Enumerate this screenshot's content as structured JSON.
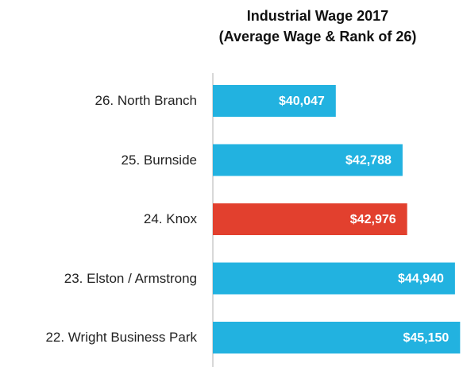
{
  "chart_data": {
    "type": "barh",
    "title": "Industrial Wage 2017",
    "subtitle": "(Average Wage & Rank of 26)",
    "categories": [
      "26. North Branch",
      "25. Burnside",
      "24. Knox",
      "23. Elston / Armstrong",
      "22. Wright Business Park"
    ],
    "values": [
      40047,
      42788,
      42976,
      44940,
      45150
    ],
    "value_labels": [
      "$40,047",
      "$42,788",
      "$42,976",
      "$44,940",
      "$45,150"
    ],
    "colors": [
      "#22b2e0",
      "#22b2e0",
      "#e2402e",
      "#22b2e0",
      "#22b2e0"
    ],
    "xlim": [
      35000,
      45400
    ]
  }
}
